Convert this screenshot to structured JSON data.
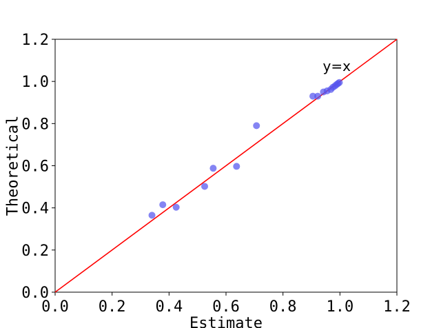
{
  "chart_data": {
    "type": "scatter",
    "xlabel": "Estimate",
    "ylabel": "Theoretical",
    "xlim": [
      0.0,
      1.2
    ],
    "ylim": [
      0.0,
      1.2
    ],
    "xticks": [
      "0.0",
      "0.2",
      "0.4",
      "0.6",
      "0.8",
      "1.0",
      "1.2"
    ],
    "yticks": [
      "0.0",
      "0.2",
      "0.4",
      "0.6",
      "0.8",
      "1.0",
      "1.2"
    ],
    "grid": false,
    "series": [
      {
        "color": "#5555ee",
        "points": [
          {
            "x": 0.34,
            "y": 0.365
          },
          {
            "x": 0.378,
            "y": 0.415
          },
          {
            "x": 0.425,
            "y": 0.403
          },
          {
            "x": 0.525,
            "y": 0.502
          },
          {
            "x": 0.555,
            "y": 0.588
          },
          {
            "x": 0.637,
            "y": 0.597
          },
          {
            "x": 0.707,
            "y": 0.79
          },
          {
            "x": 0.905,
            "y": 0.93
          },
          {
            "x": 0.922,
            "y": 0.93
          },
          {
            "x": 0.942,
            "y": 0.95
          },
          {
            "x": 0.955,
            "y": 0.955
          },
          {
            "x": 0.968,
            "y": 0.962
          },
          {
            "x": 0.975,
            "y": 0.972
          },
          {
            "x": 0.982,
            "y": 0.978
          },
          {
            "x": 0.988,
            "y": 0.985
          },
          {
            "x": 0.993,
            "y": 0.99
          },
          {
            "x": 0.998,
            "y": 0.995
          }
        ]
      }
    ],
    "reference_line": {
      "label": "y=x",
      "color": "#ff0000",
      "from": [
        0,
        0
      ],
      "to": [
        1.2,
        1.2
      ]
    },
    "annotation": {
      "text": "y=x",
      "x": 0.94,
      "y": 1.05
    }
  }
}
